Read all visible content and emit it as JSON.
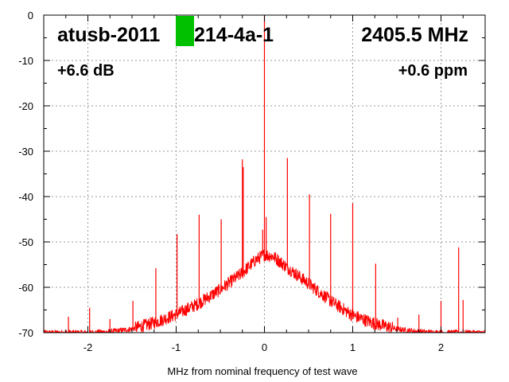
{
  "chart_data": {
    "type": "line",
    "title": "",
    "xlabel": "MHz from nominal frequency of test wave",
    "ylabel": "",
    "xlim": [
      -2.5,
      2.5
    ],
    "ylim": [
      -70,
      0
    ],
    "x_ticks": [
      -2,
      -1,
      0,
      1,
      2
    ],
    "y_ticks": [
      0,
      -10,
      -20,
      -30,
      -40,
      -50,
      -60,
      -70
    ],
    "grid": true,
    "legend": "none",
    "colors": {
      "series": "#ff0000",
      "grid": "#999999",
      "marker": "#00c000"
    },
    "series": [
      {
        "name": "",
        "noise_floor": [
          [
            -2.5,
            -70
          ],
          [
            -2.25,
            -70
          ],
          [
            -2.0,
            -70
          ],
          [
            -1.75,
            -69.8
          ],
          [
            -1.5,
            -69.2
          ],
          [
            -1.25,
            -67.8
          ],
          [
            -1.0,
            -66.0
          ],
          [
            -0.75,
            -63.6
          ],
          [
            -0.5,
            -60.5
          ],
          [
            -0.25,
            -56.8
          ],
          [
            -0.1,
            -54.0
          ],
          [
            0.0,
            -52.8
          ],
          [
            0.1,
            -53.2
          ],
          [
            0.25,
            -55.5
          ],
          [
            0.5,
            -59.2
          ],
          [
            0.75,
            -63.0
          ],
          [
            1.0,
            -66.2
          ],
          [
            1.25,
            -68.0
          ],
          [
            1.5,
            -69.2
          ],
          [
            1.75,
            -69.8
          ],
          [
            2.0,
            -70
          ],
          [
            2.25,
            -70
          ],
          [
            2.5,
            -70
          ]
        ],
        "spurs": [
          [
            -2.22,
            -66.5
          ],
          [
            -1.98,
            -64.5
          ],
          [
            -1.75,
            -67.0
          ],
          [
            -1.49,
            -63.0
          ],
          [
            -1.23,
            -55.8
          ],
          [
            -0.99,
            -48.3
          ],
          [
            -0.74,
            -44.0
          ],
          [
            -0.49,
            -45.0
          ],
          [
            -0.25,
            -31.8
          ],
          [
            -0.24,
            -33.5
          ],
          [
            -0.02,
            -47.3
          ],
          [
            0.0,
            0.0
          ],
          [
            0.02,
            -44.5
          ],
          [
            0.26,
            -31.5
          ],
          [
            0.51,
            -39.5
          ],
          [
            0.75,
            -43.8
          ],
          [
            1.0,
            -41.5
          ],
          [
            1.26,
            -54.8
          ],
          [
            1.51,
            -66.7
          ],
          [
            1.75,
            -66.0
          ],
          [
            2.0,
            -63.0
          ],
          [
            2.2,
            -51.2
          ],
          [
            2.25,
            -62.8
          ]
        ]
      }
    ]
  },
  "overlay": {
    "device_label": "atusb-2011",
    "device_suffix": "214-4a-1",
    "frequency": "2405.5 MHz",
    "gain": "+6.6 dB",
    "offset": "+0.6 ppm"
  }
}
